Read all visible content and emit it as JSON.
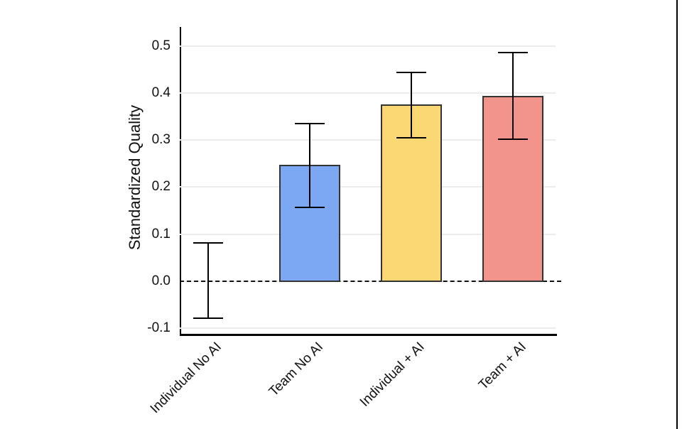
{
  "figure": {
    "background": "#FFFFFF",
    "window_border_color": "#000000"
  },
  "chart_data": {
    "type": "bar",
    "title": "",
    "ylabel": "Standardized Quality",
    "xlabel": "",
    "categories": [
      "Individual No AI",
      "Team No AI",
      "Individual + AI",
      "Team + AI"
    ],
    "values": [
      0.0,
      0.247,
      0.375,
      0.393
    ],
    "error_low": [
      -0.078,
      0.157,
      0.305,
      0.301
    ],
    "error_high": [
      0.082,
      0.335,
      0.443,
      0.485
    ],
    "has_bar": [
      false,
      true,
      true,
      true
    ],
    "bar_colors": [
      null,
      "#7CA8F3",
      "#FBD874",
      "#F2938C"
    ],
    "bar_edge_color": "#333333",
    "error_bar_color": "#000000",
    "y_ticks": [
      "-0.1",
      "0.0",
      "0.1",
      "0.2",
      "0.3",
      "0.4",
      "0.5"
    ],
    "ylim": [
      -0.112,
      0.54
    ],
    "grid": true,
    "gridline_color": "#ECECEC",
    "zero_line_style": "dashed",
    "zero_line_value": 0.0,
    "legend": "none"
  }
}
